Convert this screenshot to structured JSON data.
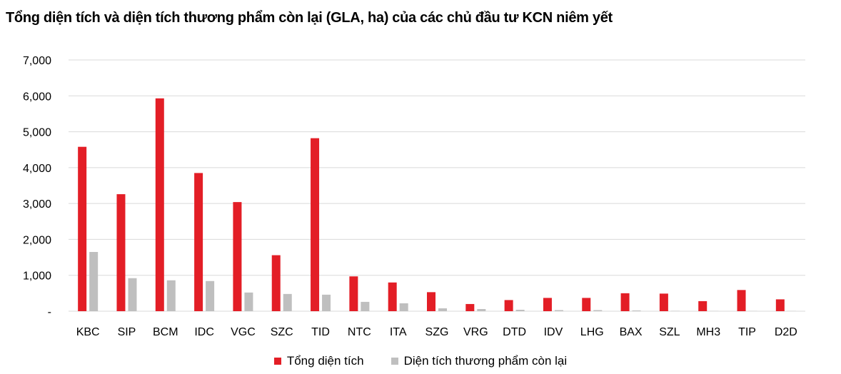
{
  "chart_data": {
    "type": "bar",
    "title": "Tổng diện tích và diện tích thương phẩm còn lại (GLA, ha) của các chủ đầu tư KCN niêm yết",
    "categories": [
      "KBC",
      "SIP",
      "BCM",
      "IDC",
      "VGC",
      "SZC",
      "TID",
      "NTC",
      "ITA",
      "SZG",
      "VRG",
      "DTD",
      "IDV",
      "LHG",
      "BAX",
      "SZL",
      "MH3",
      "TIP",
      "D2D"
    ],
    "series": [
      {
        "name": "Tổng diện tích",
        "color": "#e31e26",
        "values": [
          4580,
          3260,
          5930,
          3850,
          3040,
          1560,
          4820,
          970,
          800,
          530,
          200,
          310,
          370,
          370,
          500,
          490,
          280,
          590,
          330
        ]
      },
      {
        "name": "Diện tích thương phẩm còn lại",
        "color": "#bfbfbf",
        "values": [
          1650,
          920,
          860,
          840,
          520,
          480,
          460,
          260,
          220,
          80,
          60,
          40,
          30,
          30,
          20,
          10,
          5,
          5,
          5
        ]
      }
    ],
    "ylim": [
      0,
      7000
    ],
    "yticks": [
      {
        "value": 0,
        "label": "-"
      },
      {
        "value": 1000,
        "label": "1,000"
      },
      {
        "value": 2000,
        "label": "2,000"
      },
      {
        "value": 3000,
        "label": "3,000"
      },
      {
        "value": 4000,
        "label": "4,000"
      },
      {
        "value": 5000,
        "label": "5,000"
      },
      {
        "value": 6000,
        "label": "6,000"
      },
      {
        "value": 7000,
        "label": "7,000"
      }
    ],
    "grid": true,
    "legend": "bottom"
  }
}
